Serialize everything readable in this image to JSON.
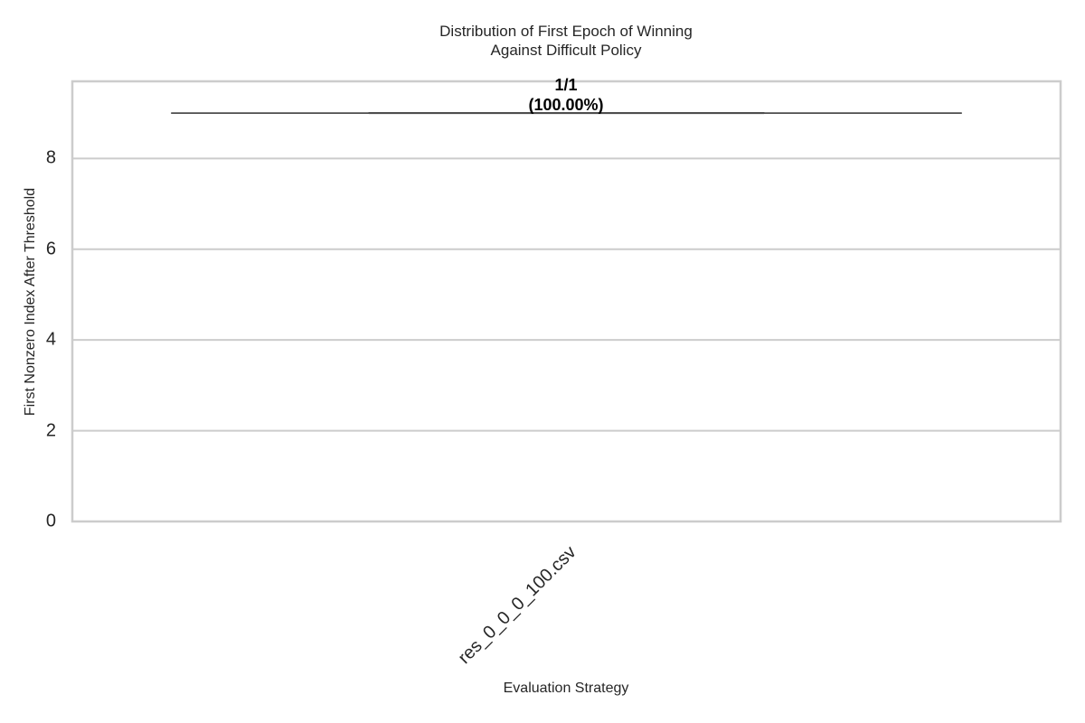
{
  "chart_data": {
    "type": "box",
    "title_line1": "Distribution of First Epoch of Winning",
    "title_line2": "Against Difficult Policy",
    "xlabel": "Evaluation Strategy",
    "ylabel": "First Nonzero Index After Threshold",
    "categories": [
      "res_0_0_0_100.csv"
    ],
    "series": [
      {
        "values": [
          9
        ],
        "min": 9,
        "q1": 9,
        "median": 9,
        "q3": 9,
        "max": 9
      }
    ],
    "annotation_line1": "1/1",
    "annotation_line2": "(100.00%)",
    "ylim": [
      0,
      9.7
    ],
    "yticks": [
      {
        "value": 0,
        "label": "0"
      },
      {
        "value": 2,
        "label": "2"
      },
      {
        "value": 4,
        "label": "4"
      },
      {
        "value": 6,
        "label": "6"
      },
      {
        "value": 8,
        "label": "8"
      }
    ],
    "grid": true,
    "colors": {
      "grid": "#cccccc",
      "box": "#4a4a4a",
      "axis": "#cccccc",
      "text": "#262626"
    }
  }
}
